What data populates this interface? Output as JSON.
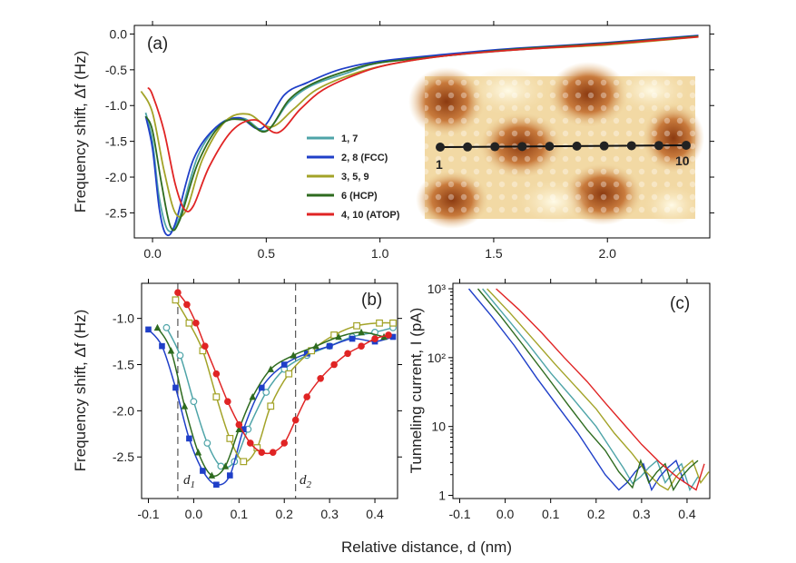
{
  "figure": {
    "shared_xlabel": "Relative distance, d (nm)",
    "colors": {
      "pos_1_7": "#4ea4a8",
      "pos_2_8": "#1f3fc8",
      "pos_3_5_9": "#a3a328",
      "pos_6": "#2e6b1f",
      "pos_4_10": "#e02424"
    }
  },
  "chart_data": [
    {
      "panel": "(a)",
      "type": "line",
      "title": "",
      "ylabel": "Frequency shift, Δf (Hz)",
      "xlabel": "",
      "xlim": [
        -0.08,
        2.45
      ],
      "ylim": [
        -2.85,
        0.12
      ],
      "xticks": [
        "0.0",
        "0.5",
        "1.0",
        "1.5",
        "2.0"
      ],
      "yticks": [
        "0.0",
        "-0.5",
        "-1.0",
        "-1.5",
        "-2.0",
        "-2.5"
      ],
      "legend": [
        "1, 7",
        "2, 8 (FCC)",
        "3, 5, 9",
        "6 (HCP)",
        "4, 10 (ATOP)"
      ],
      "legend_position": "center",
      "series": [
        {
          "name": "1, 7",
          "color": "#4ea4a8",
          "x": [
            -0.03,
            0.0,
            0.03,
            0.07,
            0.12,
            0.2,
            0.3,
            0.4,
            0.5,
            0.6,
            0.7,
            0.85,
            1.0,
            1.3,
            1.6,
            2.0,
            2.4
          ],
          "y": [
            -1.1,
            -1.5,
            -2.3,
            -2.75,
            -2.55,
            -1.7,
            -1.25,
            -1.18,
            -1.35,
            -0.95,
            -0.72,
            -0.55,
            -0.4,
            -0.3,
            -0.22,
            -0.13,
            -0.03
          ]
        },
        {
          "name": "2, 8 (FCC)",
          "color": "#1f3fc8",
          "x": [
            -0.03,
            0.0,
            0.03,
            0.06,
            0.1,
            0.18,
            0.28,
            0.38,
            0.48,
            0.58,
            0.68,
            0.82,
            1.0,
            1.3,
            1.6,
            2.0,
            2.4
          ],
          "y": [
            -1.15,
            -1.6,
            -2.45,
            -2.8,
            -2.65,
            -1.75,
            -1.3,
            -1.17,
            -1.32,
            -0.85,
            -0.68,
            -0.5,
            -0.38,
            -0.28,
            -0.2,
            -0.12,
            -0.02
          ]
        },
        {
          "name": "3, 5, 9",
          "color": "#a3a328",
          "x": [
            -0.05,
            0.0,
            0.05,
            0.1,
            0.15,
            0.22,
            0.32,
            0.42,
            0.52,
            0.62,
            0.72,
            0.88,
            1.05,
            1.3,
            1.6,
            2.0,
            2.4
          ],
          "y": [
            -0.8,
            -1.1,
            -1.9,
            -2.5,
            -2.45,
            -1.75,
            -1.22,
            -1.12,
            -1.3,
            -1.05,
            -0.78,
            -0.56,
            -0.42,
            -0.3,
            -0.22,
            -0.15,
            -0.04
          ]
        },
        {
          "name": "6 (HCP)",
          "color": "#2e6b1f",
          "x": [
            -0.03,
            0.0,
            0.04,
            0.08,
            0.12,
            0.2,
            0.3,
            0.4,
            0.5,
            0.6,
            0.7,
            0.85,
            1.0,
            1.3,
            1.6,
            2.0,
            2.4
          ],
          "y": [
            -1.15,
            -1.35,
            -2.1,
            -2.7,
            -2.6,
            -1.8,
            -1.27,
            -1.2,
            -1.36,
            -0.92,
            -0.7,
            -0.52,
            -0.4,
            -0.3,
            -0.21,
            -0.13,
            -0.03
          ]
        },
        {
          "name": "4, 10 (ATOP)",
          "color": "#e02424",
          "x": [
            -0.02,
            0.0,
            0.05,
            0.1,
            0.14,
            0.18,
            0.25,
            0.35,
            0.45,
            0.55,
            0.65,
            0.75,
            0.9,
            1.05,
            1.3,
            1.6,
            2.0,
            2.4
          ],
          "y": [
            -0.75,
            -0.85,
            -1.35,
            -2.1,
            -2.45,
            -2.4,
            -1.85,
            -1.35,
            -1.2,
            -1.38,
            -1.05,
            -0.78,
            -0.56,
            -0.42,
            -0.3,
            -0.22,
            -0.14,
            -0.04
          ]
        }
      ],
      "inset": {
        "description_labels": [
          "1",
          "10"
        ],
        "points": [
          1,
          2,
          3,
          4,
          5,
          6,
          7,
          8,
          9,
          10
        ]
      }
    },
    {
      "panel": "(b)",
      "type": "scatter",
      "ylabel": "Frequency shift, Δf (Hz)",
      "xlabel": "",
      "xlim": [
        -0.115,
        0.45
      ],
      "ylim": [
        -2.95,
        -0.62
      ],
      "xticks": [
        "-0.1",
        "0.0",
        "0.1",
        "0.2",
        "0.3",
        "0.4"
      ],
      "yticks": [
        "-1.0",
        "-1.5",
        "-2.0",
        "-2.5"
      ],
      "annotations": [
        {
          "label": "d",
          "subscript": "1",
          "x": -0.035
        },
        {
          "label": "d",
          "subscript": "2",
          "x": 0.225
        }
      ],
      "series": [
        {
          "name": "1, 7",
          "color": "#4ea4a8",
          "marker": "circle-open",
          "x": [
            -0.06,
            -0.03,
            0.0,
            0.03,
            0.06,
            0.09,
            0.12,
            0.16,
            0.2,
            0.25,
            0.3,
            0.35,
            0.4,
            0.44
          ],
          "y": [
            -1.1,
            -1.4,
            -1.9,
            -2.35,
            -2.6,
            -2.55,
            -2.2,
            -1.8,
            -1.55,
            -1.4,
            -1.3,
            -1.2,
            -1.15,
            -1.1
          ]
        },
        {
          "name": "2, 8 (FCC)",
          "color": "#1f3fc8",
          "marker": "square-filled",
          "x": [
            -0.1,
            -0.07,
            -0.04,
            -0.01,
            0.02,
            0.05,
            0.08,
            0.11,
            0.15,
            0.2,
            0.25,
            0.3,
            0.35,
            0.4,
            0.44
          ],
          "y": [
            -1.12,
            -1.3,
            -1.75,
            -2.3,
            -2.65,
            -2.8,
            -2.7,
            -2.2,
            -1.75,
            -1.5,
            -1.38,
            -1.3,
            -1.22,
            -1.25,
            -1.2
          ]
        },
        {
          "name": "3, 5, 9",
          "color": "#a3a328",
          "marker": "square-open",
          "x": [
            -0.04,
            -0.01,
            0.02,
            0.05,
            0.08,
            0.11,
            0.14,
            0.17,
            0.21,
            0.26,
            0.31,
            0.36,
            0.41,
            0.44
          ],
          "y": [
            -0.8,
            -1.05,
            -1.35,
            -1.85,
            -2.3,
            -2.55,
            -2.4,
            -1.95,
            -1.6,
            -1.35,
            -1.18,
            -1.08,
            -1.05,
            -1.05
          ]
        },
        {
          "name": "6 (HCP)",
          "color": "#2e6b1f",
          "marker": "triangle-filled",
          "x": [
            -0.08,
            -0.05,
            -0.02,
            0.01,
            0.04,
            0.07,
            0.1,
            0.13,
            0.17,
            0.22,
            0.27,
            0.32,
            0.37,
            0.42
          ],
          "y": [
            -1.1,
            -1.35,
            -1.95,
            -2.45,
            -2.7,
            -2.6,
            -2.2,
            -1.85,
            -1.55,
            -1.4,
            -1.3,
            -1.2,
            -1.15,
            -1.2
          ]
        },
        {
          "name": "4, 10 (ATOP)",
          "color": "#e02424",
          "marker": "circle-filled",
          "x": [
            -0.035,
            -0.015,
            0.005,
            0.025,
            0.05,
            0.075,
            0.1,
            0.125,
            0.15,
            0.175,
            0.2,
            0.225,
            0.25,
            0.28,
            0.31,
            0.34,
            0.37,
            0.4,
            0.43
          ],
          "y": [
            -0.72,
            -0.85,
            -1.05,
            -1.3,
            -1.6,
            -1.9,
            -2.15,
            -2.35,
            -2.45,
            -2.45,
            -2.35,
            -2.1,
            -1.85,
            -1.65,
            -1.5,
            -1.38,
            -1.3,
            -1.22,
            -1.18
          ]
        }
      ]
    },
    {
      "panel": "(c)",
      "type": "line",
      "yscale": "log",
      "ylabel": "Tunneling current, I (pA)",
      "xlabel": "",
      "xlim": [
        -0.115,
        0.45
      ],
      "ylim": [
        0.9,
        1200
      ],
      "xticks": [
        "-0.1",
        "0.0",
        "0.1",
        "0.2",
        "0.3",
        "0.4"
      ],
      "yticks": [
        "1",
        "10",
        "10²",
        "10³"
      ],
      "series": [
        {
          "name": "1, 7",
          "color": "#4ea4a8",
          "x": [
            -0.05,
            0.0,
            0.05,
            0.1,
            0.15,
            0.2,
            0.23,
            0.26,
            0.28
          ],
          "y": [
            1000,
            400,
            160,
            60,
            25,
            10,
            5,
            2.5,
            1.5
          ]
        },
        {
          "name": "2, 8 (FCC)",
          "color": "#1f3fc8",
          "x": [
            -0.08,
            -0.03,
            0.02,
            0.07,
            0.12,
            0.16,
            0.19,
            0.22,
            0.25
          ],
          "y": [
            1000,
            400,
            150,
            50,
            18,
            8,
            4,
            2,
            1.2
          ]
        },
        {
          "name": "3, 5, 9",
          "color": "#a3a328",
          "x": [
            -0.04,
            0.01,
            0.06,
            0.11,
            0.16,
            0.2,
            0.24,
            0.28,
            0.31,
            0.34
          ],
          "y": [
            1000,
            450,
            190,
            80,
            35,
            18,
            8,
            4,
            2.2,
            1.4
          ]
        },
        {
          "name": "6 (HCP)",
          "color": "#2e6b1f",
          "x": [
            -0.06,
            -0.01,
            0.04,
            0.09,
            0.14,
            0.18,
            0.22,
            0.25,
            0.28
          ],
          "y": [
            1000,
            400,
            150,
            55,
            20,
            9,
            4.5,
            2.2,
            1.3
          ]
        },
        {
          "name": "4, 10 (ATOP)",
          "color": "#e02424",
          "x": [
            -0.02,
            0.03,
            0.08,
            0.13,
            0.18,
            0.22,
            0.26,
            0.3,
            0.34,
            0.38,
            0.42
          ],
          "y": [
            1000,
            500,
            230,
            100,
            45,
            22,
            11,
            5.5,
            3,
            1.8,
            1.2
          ]
        }
      ]
    }
  ]
}
